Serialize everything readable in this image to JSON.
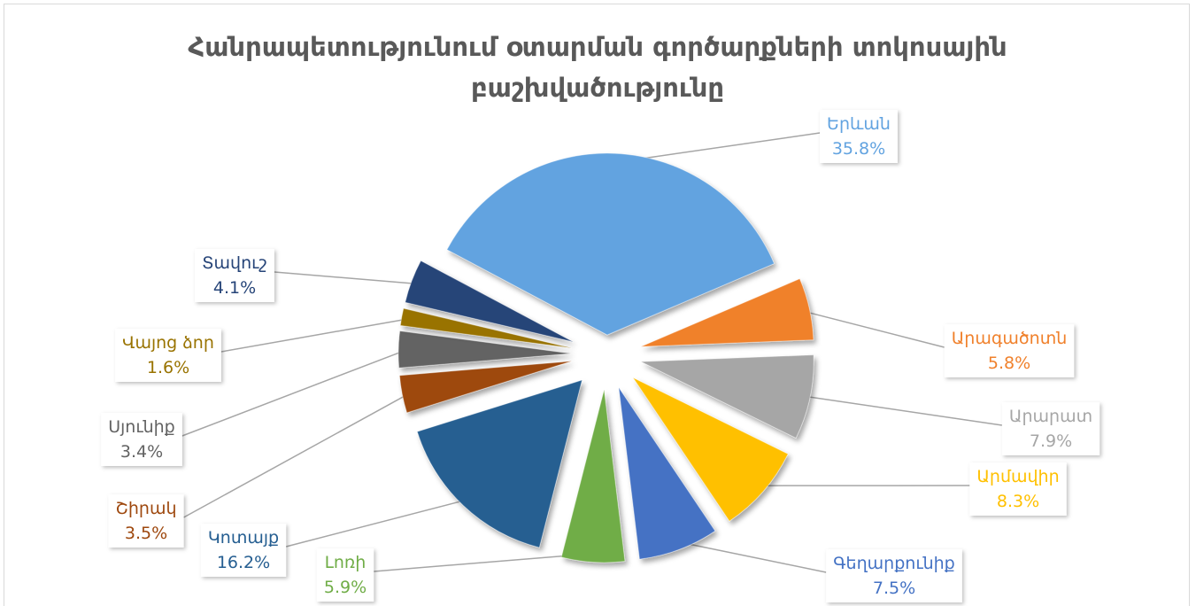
{
  "chart_data": {
    "type": "pie",
    "title": "Հանրապետությունում օտարման գործարքների տոկոսային բաշխվածությունը",
    "categories": [
      "Երևան",
      "Արագածոտն",
      "Արարատ",
      "Արմավիր",
      "Գեղարքունիք",
      "Լոռի",
      "Կոտայք",
      "Շիրակ",
      "Սյունիք",
      "Վայոց ձոր",
      "Տավուշ"
    ],
    "values": [
      35.8,
      5.8,
      7.9,
      8.3,
      7.5,
      5.9,
      16.2,
      3.5,
      3.4,
      1.6,
      4.1
    ],
    "value_labels": [
      "35.8%",
      "5.8%",
      "7.9%",
      "8.3%",
      "7.5%",
      "5.9%",
      "16.2%",
      "3.5%",
      "3.4%",
      "1.6%",
      "4.1%"
    ],
    "colors": [
      "#62a3e0",
      "#f0812c",
      "#a6a6a6",
      "#ffc000",
      "#4472c4",
      "#70ad47",
      "#255e91",
      "#9e480e",
      "#636363",
      "#997300",
      "#264478"
    ]
  }
}
